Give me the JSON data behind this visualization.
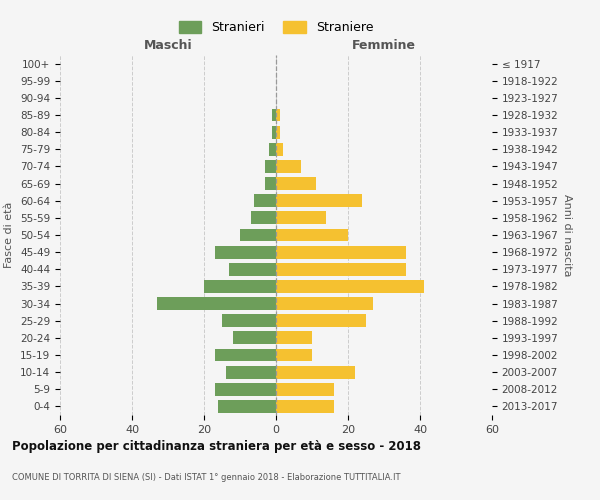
{
  "age_groups": [
    "0-4",
    "5-9",
    "10-14",
    "15-19",
    "20-24",
    "25-29",
    "30-34",
    "35-39",
    "40-44",
    "45-49",
    "50-54",
    "55-59",
    "60-64",
    "65-69",
    "70-74",
    "75-79",
    "80-84",
    "85-89",
    "90-94",
    "95-99",
    "100+"
  ],
  "birth_years": [
    "2013-2017",
    "2008-2012",
    "2003-2007",
    "1998-2002",
    "1993-1997",
    "1988-1992",
    "1983-1987",
    "1978-1982",
    "1973-1977",
    "1968-1972",
    "1963-1967",
    "1958-1962",
    "1953-1957",
    "1948-1952",
    "1943-1947",
    "1938-1942",
    "1933-1937",
    "1928-1932",
    "1923-1927",
    "1918-1922",
    "≤ 1917"
  ],
  "males": [
    16,
    17,
    14,
    17,
    12,
    15,
    33,
    20,
    13,
    17,
    10,
    7,
    6,
    3,
    3,
    2,
    1,
    1,
    0,
    0,
    0
  ],
  "females": [
    16,
    16,
    22,
    10,
    10,
    25,
    27,
    41,
    36,
    36,
    20,
    14,
    24,
    11,
    7,
    2,
    1,
    1,
    0,
    0,
    0
  ],
  "male_color": "#6d9e5a",
  "female_color": "#f5c130",
  "bg_color": "#f5f5f5",
  "grid_color": "#cccccc",
  "bar_height": 0.75,
  "xlim": 60,
  "title": "Popolazione per cittadinanza straniera per età e sesso - 2018",
  "subtitle": "COMUNE DI TORRITA DI SIENA (SI) - Dati ISTAT 1° gennaio 2018 - Elaborazione TUTTITALIA.IT",
  "xlabel_left": "Maschi",
  "xlabel_right": "Femmine",
  "ylabel_left": "Fasce di età",
  "ylabel_right": "Anni di nascita",
  "legend_male": "Stranieri",
  "legend_female": "Straniere"
}
